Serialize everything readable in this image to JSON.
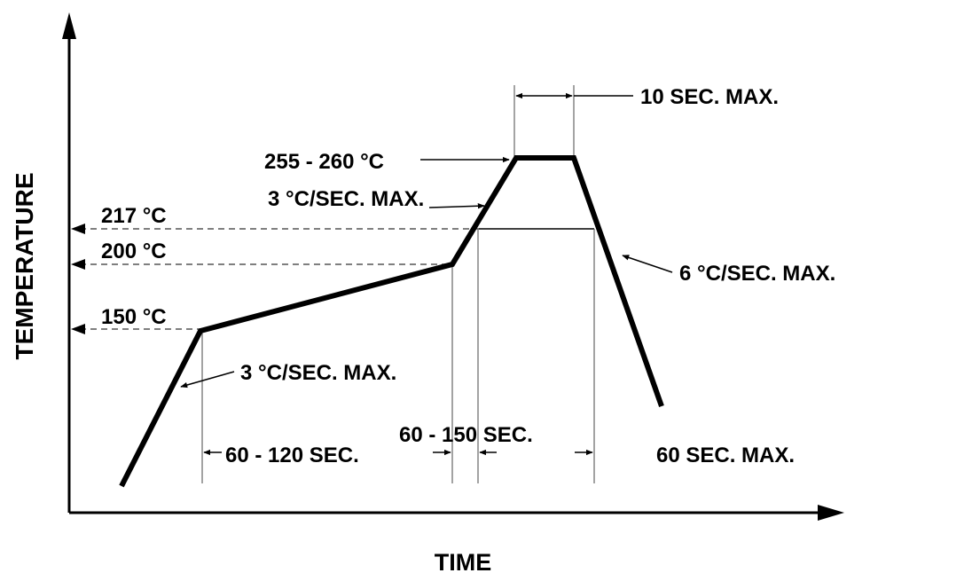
{
  "axes": {
    "y_label": "TEMPERATURE",
    "x_label": "TIME"
  },
  "temperatures": {
    "t217": "217 °C",
    "t200": "200 °C",
    "t150": "150 °C",
    "peak": "255 - 260 °C"
  },
  "annotations": {
    "ramp_up_initial": "3 °C/SEC. MAX.",
    "ramp_up_reflow": "3 °C/SEC. MAX.",
    "ramp_down": "6 °C/SEC. MAX.",
    "peak_time": "10 SEC. MAX.",
    "preheat_time": "60 - 120 SEC.",
    "reflow_time": "60 - 150 SEC.",
    "cool_time": "60 SEC. MAX."
  },
  "colors": {
    "line": "#000000",
    "background": "#ffffff",
    "guide": "#555555"
  }
}
